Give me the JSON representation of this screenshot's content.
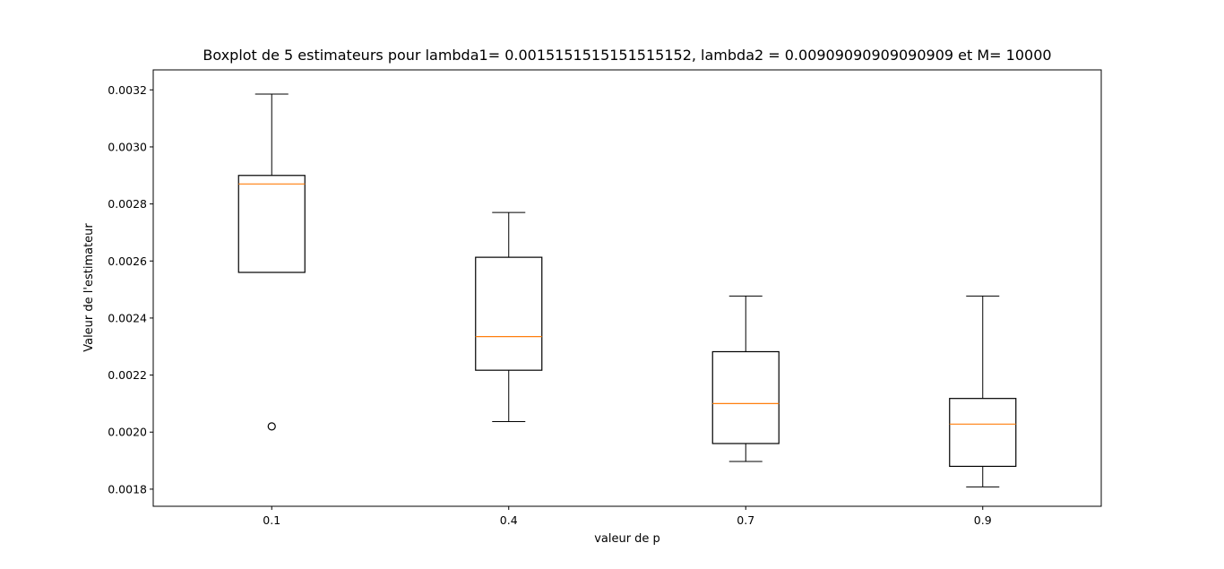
{
  "chart_data": {
    "type": "boxplot",
    "title": "Boxplot de 5 estimateurs  pour lambda1= 0.0015151515151515152, lambda2 = 0.00909090909090909 et M= 10000",
    "xlabel": "valeur de p",
    "ylabel": "Valeur de l'estimateur",
    "categories": [
      "0.1",
      "0.4",
      "0.7",
      "0.9"
    ],
    "ylim": [
      0.00174,
      0.00327
    ],
    "yticks": [
      0.0018,
      0.002,
      0.0022,
      0.0024,
      0.0026,
      0.0028,
      0.003,
      0.0032
    ],
    "ytick_labels": [
      "0.0018",
      "0.0020",
      "0.0022",
      "0.0024",
      "0.0026",
      "0.0028",
      "0.0030",
      "0.0032"
    ],
    "boxes": [
      {
        "category": "0.1",
        "whislo": 0.00256,
        "q1": 0.00256,
        "median": 0.00287,
        "q3": 0.0029,
        "whishi": 0.003185,
        "fliers": [
          0.00202
        ]
      },
      {
        "category": "0.4",
        "whislo": 0.002037,
        "q1": 0.002217,
        "median": 0.002335,
        "q3": 0.002613,
        "whishi": 0.00277,
        "fliers": []
      },
      {
        "category": "0.7",
        "whislo": 0.001897,
        "q1": 0.00196,
        "median": 0.0021,
        "q3": 0.002282,
        "whishi": 0.002477,
        "fliers": []
      },
      {
        "category": "0.9",
        "whislo": 0.001808,
        "q1": 0.00188,
        "median": 0.002028,
        "q3": 0.002118,
        "whishi": 0.002477,
        "fliers": []
      }
    ],
    "grid": false,
    "colors": {
      "box": "#000000",
      "median": "#ff7f0e",
      "flier": "#000000"
    }
  }
}
